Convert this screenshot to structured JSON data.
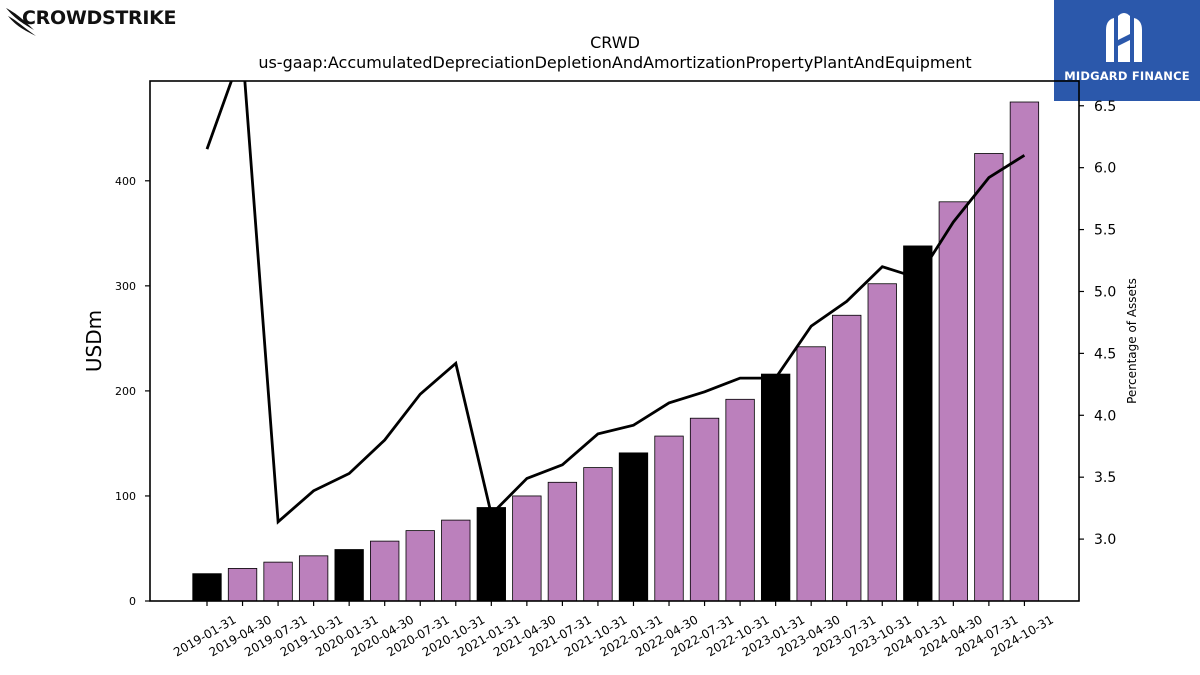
{
  "logos": {
    "left": "CROWDSTRIKE",
    "right": "MIDGARD FINANCE"
  },
  "colors": {
    "bar_default": "#bb80bc",
    "bar_highlight": "#000000",
    "line": "#000000",
    "logo_right_bg": "#2b58ab"
  },
  "chart_data": {
    "type": "bar",
    "title": "CRWD",
    "subtitle": "us-gaap:AccumulatedDepreciationDepletionAndAmortizationPropertyPlantAndEquipment",
    "ylabel": "USDm",
    "y2label": "Percentage of Assets",
    "ylim": [
      0,
      495
    ],
    "y2lim": [
      2.5,
      6.7
    ],
    "yticks": [
      0,
      100,
      200,
      300,
      400
    ],
    "y2ticks": [
      3.0,
      3.5,
      4.0,
      4.5,
      5.0,
      5.5,
      6.0,
      6.5
    ],
    "grid": false,
    "categories": [
      "2019-01-31",
      "2019-04-30",
      "2019-07-31",
      "2019-10-31",
      "2020-01-31",
      "2020-04-30",
      "2020-07-31",
      "2020-10-31",
      "2021-01-31",
      "2021-04-30",
      "2021-07-31",
      "2021-10-31",
      "2022-01-31",
      "2022-04-30",
      "2022-07-31",
      "2022-10-31",
      "2023-01-31",
      "2023-04-30",
      "2023-07-31",
      "2023-10-31",
      "2024-01-31",
      "2024-04-30",
      "2024-07-31",
      "2024-10-31"
    ],
    "series": [
      {
        "kind": "bar",
        "axis": "left",
        "values": [
          26,
          31,
          37,
          43,
          49,
          57,
          67,
          77,
          89,
          100,
          113,
          127,
          141,
          157,
          174,
          192,
          216,
          242,
          272,
          302,
          338,
          380,
          426,
          475
        ],
        "highlight": [
          true,
          false,
          false,
          false,
          true,
          false,
          false,
          false,
          true,
          false,
          false,
          false,
          true,
          false,
          false,
          false,
          true,
          false,
          false,
          false,
          true,
          false,
          false,
          false
        ]
      },
      {
        "kind": "line",
        "axis": "right",
        "values": [
          6.15,
          6.95,
          3.14,
          3.39,
          3.53,
          3.8,
          4.17,
          4.42,
          3.2,
          3.49,
          3.6,
          3.85,
          3.92,
          4.1,
          4.19,
          4.3,
          4.3,
          4.72,
          4.92,
          5.2,
          5.11,
          5.56,
          5.92,
          6.1
        ]
      }
    ]
  }
}
